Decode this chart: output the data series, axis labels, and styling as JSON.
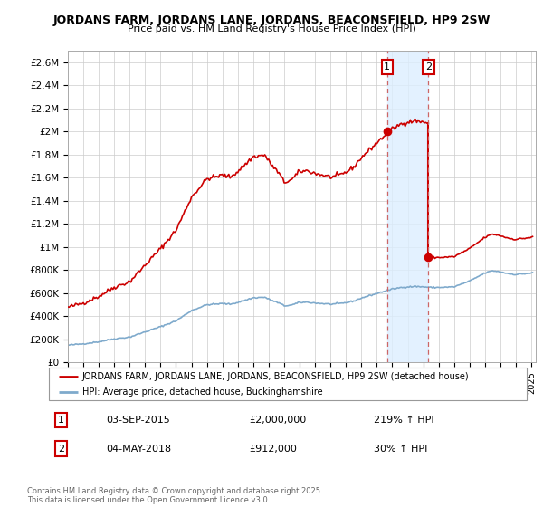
{
  "title1": "JORDANS FARM, JORDANS LANE, JORDANS, BEACONSFIELD, HP9 2SW",
  "title2": "Price paid vs. HM Land Registry's House Price Index (HPI)",
  "ylim": [
    0,
    2700000
  ],
  "yticks": [
    0,
    200000,
    400000,
    600000,
    800000,
    1000000,
    1200000,
    1400000,
    1600000,
    1800000,
    2000000,
    2200000,
    2400000,
    2600000
  ],
  "ytick_labels": [
    "£0",
    "£200K",
    "£400K",
    "£600K",
    "£800K",
    "£1M",
    "£1.2M",
    "£1.4M",
    "£1.6M",
    "£1.8M",
    "£2M",
    "£2.2M",
    "£2.4M",
    "£2.6M"
  ],
  "house_color": "#cc0000",
  "hpi_color": "#7faacc",
  "annotation_bg": "#ddeeff",
  "legend_label_house": "JORDANS FARM, JORDANS LANE, JORDANS, BEACONSFIELD, HP9 2SW (detached house)",
  "legend_label_hpi": "HPI: Average price, detached house, Buckinghamshire",
  "table_row1": [
    "1",
    "03-SEP-2015",
    "£2,000,000",
    "219% ↑ HPI"
  ],
  "table_row2": [
    "2",
    "04-MAY-2018",
    "£912,000",
    "30% ↑ HPI"
  ],
  "footer": "Contains HM Land Registry data © Crown copyright and database right 2025.\nThis data is licensed under the Open Government Licence v3.0.",
  "sale1_x": 2015.67,
  "sale1_y": 2000000,
  "sale2_x": 2018.34,
  "sale2_y": 912000,
  "xlim_start": 1995,
  "xlim_end": 2025.3
}
